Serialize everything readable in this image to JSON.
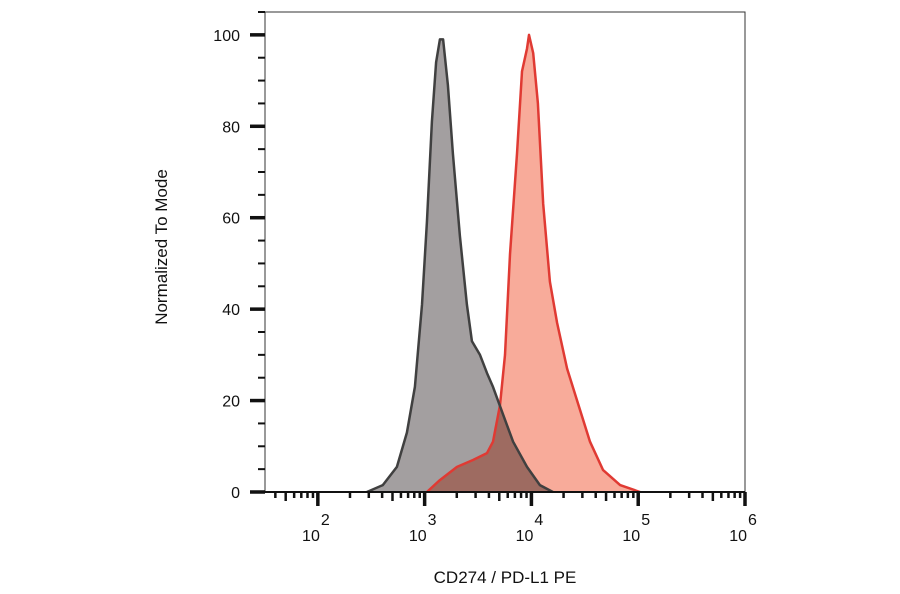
{
  "chart_data": {
    "type": "area",
    "title": "",
    "xlabel": "CD274 / PD-L1 PE",
    "ylabel": "Normalized To Mode",
    "x_scale": "log",
    "xlim": [
      32,
      1000000
    ],
    "ylim": [
      0,
      105
    ],
    "x_ticks": [
      {
        "value": 100,
        "base": "10",
        "exp": "2"
      },
      {
        "value": 1000,
        "base": "10",
        "exp": "3"
      },
      {
        "value": 10000,
        "base": "10",
        "exp": "4"
      },
      {
        "value": 100000,
        "base": "10",
        "exp": "5"
      },
      {
        "value": 1000000,
        "base": "10",
        "exp": "6"
      }
    ],
    "y_ticks": [
      0,
      20,
      40,
      60,
      80,
      100
    ],
    "y_tick_labels": [
      "0",
      "20",
      "40",
      "60",
      "80",
      "100"
    ],
    "grid": false,
    "legend": "none",
    "series": [
      {
        "fill": "#a39fa0",
        "line": "#404040",
        "x": [
          288,
          406,
          550,
          682,
          811,
          944,
          1050,
          1170,
          1280,
          1390,
          1490,
          1650,
          1840,
          2140,
          2490,
          2770,
          3300,
          3840,
          4370,
          5420,
          6730,
          9100,
          12000,
          15900
        ],
        "y": [
          0,
          1.5,
          5.5,
          13,
          23,
          41,
          59,
          81,
          94,
          99,
          99,
          89,
          74,
          56,
          41,
          33,
          30,
          26,
          23,
          17,
          11,
          5.5,
          1.5,
          0
        ]
      },
      {
        "fill": "#f8ab9a",
        "line": "#e03a33",
        "x": [
          1050,
          1390,
          2010,
          2840,
          3840,
          4370,
          5080,
          5660,
          6300,
          7330,
          8170,
          9100,
          9500,
          10400,
          11500,
          12900,
          14900,
          17400,
          21600,
          26800,
          35400,
          46900,
          67600,
          104000
        ],
        "y": [
          0,
          2.6,
          5.5,
          7,
          8.5,
          11,
          19,
          30,
          52,
          74,
          92,
          97,
          100,
          96,
          85,
          63,
          46,
          37,
          27,
          20,
          11,
          4.8,
          1.5,
          0
        ]
      }
    ]
  }
}
